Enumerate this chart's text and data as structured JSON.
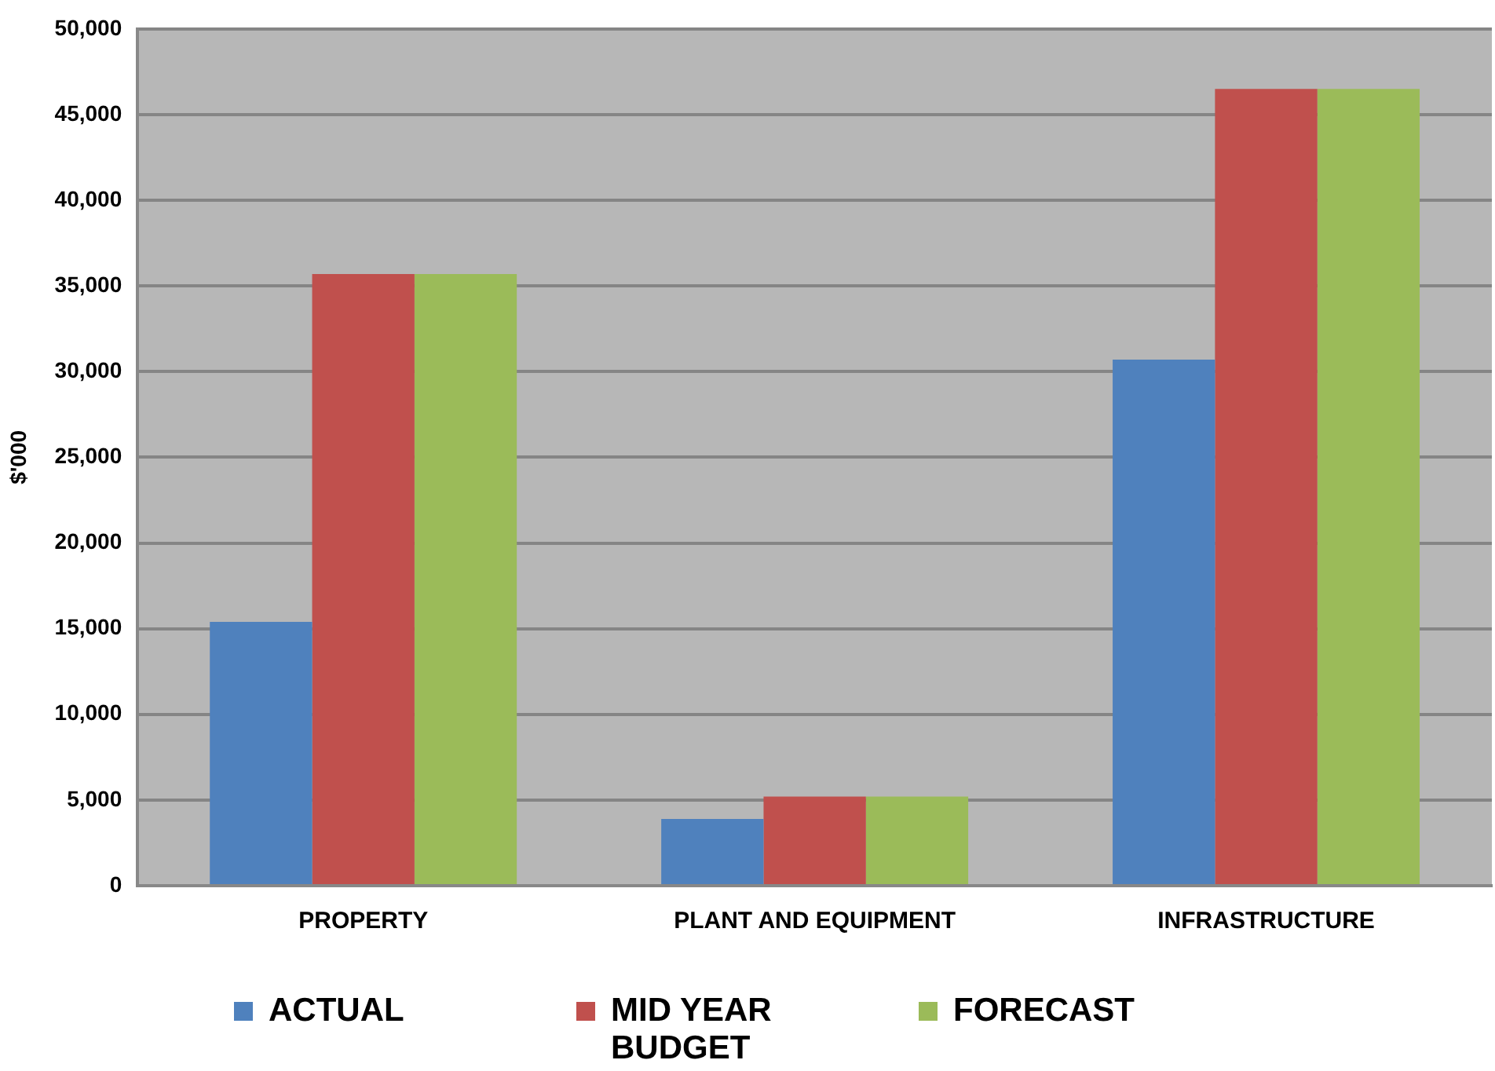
{
  "chart_data": {
    "type": "bar",
    "ylabel": "$'000",
    "categories": [
      "PROPERTY",
      "PLANT AND EQUIPMENT",
      "INFRASTRUCTURE"
    ],
    "series": [
      {
        "name": "ACTUAL",
        "color": "#4f81bd",
        "values": [
          15400,
          3900,
          30700
        ]
      },
      {
        "name": "MID YEAR BUDGET",
        "color": "#c0504d",
        "values": [
          35700,
          5200,
          46500
        ]
      },
      {
        "name": "FORECAST",
        "color": "#9bbb59",
        "values": [
          35700,
          5200,
          46500
        ]
      }
    ],
    "ylim": [
      0,
      50000
    ],
    "yticks": [
      0,
      {
        "value": 5000,
        "label": "5,000"
      },
      {
        "value": 10000,
        "label": "10,000"
      },
      {
        "value": 15000,
        "label": "15,000"
      },
      {
        "value": 20000,
        "label": "20,000"
      },
      {
        "value": 25000,
        "label": "25,000"
      },
      {
        "value": 30000,
        "label": "30,000"
      },
      {
        "value": 35000,
        "label": "35,000"
      },
      {
        "value": 40000,
        "label": "40,000"
      },
      {
        "value": 45000,
        "label": "45,000"
      },
      {
        "value": 50000,
        "label": "50,000"
      }
    ],
    "grid": "y",
    "legend": "bottom"
  }
}
